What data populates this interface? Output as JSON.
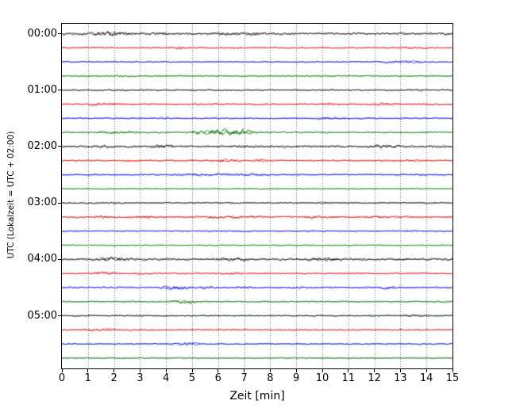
{
  "chart_data": {
    "type": "line",
    "subtype": "helicorder-seismogram",
    "title": "",
    "xlabel": "Zeit  [min]",
    "ylabel": "UTC (Lokalzeit = UTC + 02:00)",
    "xlim": [
      0,
      15
    ],
    "x_tick_labels": [
      "0",
      "1",
      "2",
      "3",
      "4",
      "5",
      "6",
      "7",
      "8",
      "9",
      "10",
      "11",
      "12",
      "13",
      "14",
      "15"
    ],
    "y_tick_labels": [
      "00:00",
      "01:00",
      "02:00",
      "03:00",
      "04:00",
      "05:00"
    ],
    "minutes_per_line": 15,
    "lines_per_hour": 4,
    "grid": "vertical-dotted",
    "legend": "none",
    "colors": {
      "black": "#000000",
      "red": "#dd0000",
      "blue": "#0000dd",
      "green": "#007700"
    },
    "traces": [
      {
        "start": "00:00",
        "color": "black",
        "base": 1.25,
        "bursts": [
          [
            1.5,
            0.4,
            1.0
          ],
          [
            2.2,
            0.6,
            1.2
          ],
          [
            3.9,
            0.15,
            1.5
          ],
          [
            6.3,
            0.5,
            0.8
          ],
          [
            7.3,
            0.4,
            0.9
          ]
        ]
      },
      {
        "start": "00:15",
        "color": "red",
        "base": 0.7,
        "bursts": [
          [
            1.0,
            0.3,
            0.4
          ],
          [
            4.55,
            0.15,
            1.8
          ],
          [
            13.3,
            0.3,
            0.6
          ],
          [
            14.0,
            0.2,
            0.5
          ]
        ]
      },
      {
        "start": "00:30",
        "color": "blue",
        "base": 0.7,
        "bursts": [
          [
            2.0,
            0.3,
            0.4
          ],
          [
            9.0,
            0.2,
            0.4
          ],
          [
            12.9,
            0.5,
            1.0
          ],
          [
            13.6,
            0.3,
            0.8
          ]
        ]
      },
      {
        "start": "00:45",
        "color": "green",
        "base": 0.65,
        "bursts": [
          [
            2.5,
            0.3,
            0.3
          ],
          [
            12.0,
            0.3,
            0.3
          ]
        ]
      },
      {
        "start": "01:00",
        "color": "black",
        "base": 0.8,
        "bursts": [
          [
            2.0,
            0.5,
            0.4
          ],
          [
            10.3,
            0.2,
            0.4
          ],
          [
            13.6,
            0.3,
            0.7
          ]
        ]
      },
      {
        "start": "01:15",
        "color": "red",
        "base": 0.8,
        "bursts": [
          [
            1.3,
            0.4,
            0.9
          ],
          [
            2.0,
            0.3,
            0.7
          ],
          [
            6.0,
            0.2,
            0.5
          ],
          [
            10.2,
            0.2,
            0.8
          ],
          [
            12.3,
            0.4,
            1.0
          ]
        ]
      },
      {
        "start": "01:30",
        "color": "blue",
        "base": 0.75,
        "bursts": [
          [
            4.0,
            0.2,
            0.4
          ],
          [
            10.2,
            0.4,
            1.2
          ],
          [
            10.8,
            0.2,
            0.8
          ]
        ]
      },
      {
        "start": "01:45",
        "color": "green",
        "base": 0.9,
        "bursts": [
          [
            1.5,
            0.3,
            0.8
          ],
          [
            2.4,
            0.6,
            1.2
          ],
          [
            5.2,
            0.3,
            1.5
          ],
          [
            5.9,
            0.35,
            3.2
          ],
          [
            6.6,
            0.5,
            2.8
          ],
          [
            7.1,
            0.3,
            1.8
          ]
        ]
      },
      {
        "start": "02:00",
        "color": "black",
        "base": 1.25,
        "bursts": [
          [
            1.5,
            0.4,
            0.6
          ],
          [
            3.7,
            0.3,
            1.2
          ],
          [
            4.1,
            0.2,
            1.0
          ],
          [
            7.0,
            0.5,
            0.6
          ],
          [
            12.4,
            0.6,
            0.9
          ]
        ]
      },
      {
        "start": "02:15",
        "color": "red",
        "base": 0.8,
        "bursts": [
          [
            2.5,
            0.2,
            0.5
          ],
          [
            5.0,
            0.2,
            0.6
          ],
          [
            6.2,
            0.3,
            1.3
          ],
          [
            6.6,
            0.2,
            1.0
          ],
          [
            7.6,
            0.25,
            1.1
          ],
          [
            13.5,
            0.3,
            0.9
          ]
        ]
      },
      {
        "start": "02:30",
        "color": "blue",
        "base": 0.8,
        "bursts": [
          [
            5.0,
            0.5,
            0.8
          ],
          [
            6.0,
            0.6,
            0.8
          ],
          [
            7.0,
            0.5,
            0.8
          ],
          [
            7.6,
            0.3,
            0.7
          ],
          [
            13.8,
            0.2,
            0.5
          ]
        ]
      },
      {
        "start": "02:45",
        "color": "green",
        "base": 0.65,
        "bursts": [
          [
            3.0,
            0.3,
            0.3
          ],
          [
            8.0,
            0.3,
            0.3
          ]
        ]
      },
      {
        "start": "03:00",
        "color": "black",
        "base": 0.8,
        "bursts": [
          [
            2.0,
            0.3,
            0.4
          ],
          [
            6.5,
            0.3,
            0.3
          ],
          [
            10.1,
            0.2,
            0.8
          ]
        ]
      },
      {
        "start": "03:15",
        "color": "red",
        "base": 1.0,
        "bursts": [
          [
            1.6,
            0.3,
            1.2
          ],
          [
            3.2,
            0.4,
            1.2
          ],
          [
            5.8,
            0.4,
            1.0
          ],
          [
            6.7,
            0.4,
            1.1
          ],
          [
            7.4,
            0.3,
            1.0
          ],
          [
            9.6,
            0.3,
            1.1
          ],
          [
            10.5,
            0.2,
            0.6
          ],
          [
            12.1,
            0.3,
            1.2
          ]
        ]
      },
      {
        "start": "03:30",
        "color": "blue",
        "base": 0.7,
        "bursts": [
          [
            6.0,
            0.3,
            0.4
          ],
          [
            9.0,
            0.2,
            0.3
          ],
          [
            13.4,
            0.3,
            0.8
          ]
        ]
      },
      {
        "start": "03:45",
        "color": "green",
        "base": 0.65,
        "bursts": [
          [
            2.0,
            0.3,
            0.3
          ],
          [
            11.0,
            0.3,
            0.3
          ]
        ]
      },
      {
        "start": "04:00",
        "color": "black",
        "base": 1.2,
        "bursts": [
          [
            1.7,
            0.4,
            1.1
          ],
          [
            2.3,
            0.4,
            1.0
          ],
          [
            6.3,
            0.5,
            1.0
          ],
          [
            7.0,
            0.3,
            0.8
          ],
          [
            9.8,
            0.5,
            1.0
          ],
          [
            10.4,
            0.3,
            0.8
          ],
          [
            13.0,
            0.3,
            0.6
          ]
        ]
      },
      {
        "start": "04:15",
        "color": "red",
        "base": 0.85,
        "bursts": [
          [
            1.5,
            0.3,
            1.2
          ],
          [
            1.9,
            0.2,
            1.0
          ],
          [
            3.0,
            0.2,
            0.5
          ],
          [
            6.6,
            0.25,
            1.0
          ],
          [
            11.5,
            0.2,
            0.4
          ]
        ]
      },
      {
        "start": "04:30",
        "color": "blue",
        "base": 0.9,
        "bursts": [
          [
            4.2,
            0.4,
            1.6
          ],
          [
            4.7,
            0.3,
            1.2
          ],
          [
            5.5,
            0.3,
            0.8
          ],
          [
            7.0,
            0.3,
            1.0
          ],
          [
            9.0,
            0.3,
            0.5
          ],
          [
            12.5,
            0.3,
            1.4
          ]
        ]
      },
      {
        "start": "04:45",
        "color": "green",
        "base": 0.8,
        "bursts": [
          [
            2.5,
            0.3,
            0.5
          ],
          [
            4.6,
            0.35,
            1.8
          ],
          [
            5.0,
            0.2,
            1.2
          ],
          [
            8.0,
            0.3,
            0.4
          ]
        ]
      },
      {
        "start": "05:00",
        "color": "black",
        "base": 0.75,
        "bursts": [
          [
            5.0,
            0.2,
            0.3
          ],
          [
            13.4,
            0.4,
            0.9
          ],
          [
            13.9,
            0.2,
            0.6
          ]
        ]
      },
      {
        "start": "05:15",
        "color": "red",
        "base": 0.8,
        "bursts": [
          [
            1.2,
            0.4,
            0.8
          ],
          [
            1.8,
            0.3,
            0.7
          ],
          [
            6.5,
            0.2,
            0.4
          ],
          [
            9.0,
            0.2,
            0.4
          ]
        ]
      },
      {
        "start": "05:30",
        "color": "blue",
        "base": 0.7,
        "bursts": [
          [
            2.0,
            0.2,
            0.3
          ],
          [
            4.7,
            0.35,
            1.1
          ],
          [
            5.1,
            0.2,
            0.8
          ]
        ]
      },
      {
        "start": "05:45",
        "color": "green",
        "base": 0.6,
        "bursts": [
          [
            3.0,
            0.3,
            0.3
          ],
          [
            10.0,
            0.2,
            0.3
          ]
        ]
      }
    ]
  }
}
